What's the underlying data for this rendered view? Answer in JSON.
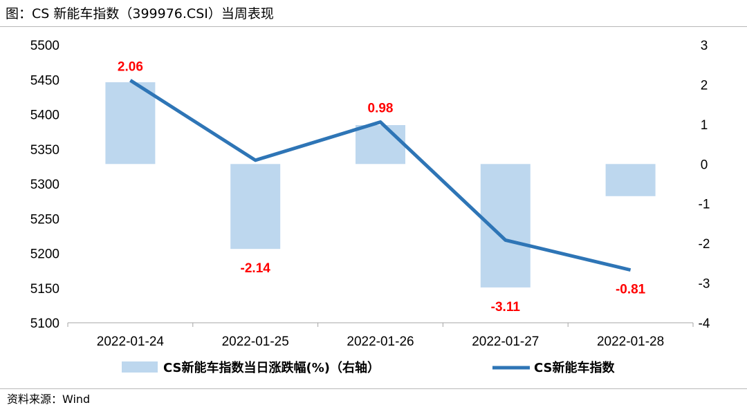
{
  "header": {
    "title": "图：CS 新能车指数（399976.CSI）当周表现"
  },
  "footer": {
    "source": "资料来源：Wind"
  },
  "colors": {
    "bar": "#bdd7ee",
    "line": "#2e75b6",
    "label": "#ff0000",
    "axis": "#a6a6a6"
  },
  "chart_data": {
    "type": "bar+line",
    "categories": [
      "2022-01-24",
      "2022-01-25",
      "2022-01-26",
      "2022-01-27",
      "2022-01-28"
    ],
    "series": [
      {
        "name": "CS新能车指数当日涨跌幅(%)（右轴）",
        "type": "bar",
        "axis": "right",
        "values": [
          2.06,
          -2.14,
          0.98,
          -3.11,
          -0.81
        ],
        "labels": [
          "2.06",
          "-2.14",
          "0.98",
          "-3.11",
          "-0.81"
        ]
      },
      {
        "name": "CS新能车指数",
        "type": "line",
        "axis": "left",
        "values": [
          5449,
          5334,
          5389,
          5219,
          5176
        ]
      }
    ],
    "left_axis": {
      "min": 5100,
      "max": 5500,
      "ticks": [
        "5500",
        "5450",
        "5400",
        "5350",
        "5300",
        "5250",
        "5200",
        "5150",
        "5100"
      ]
    },
    "right_axis": {
      "min": -4,
      "max": 3,
      "ticks": [
        "3",
        "2",
        "1",
        "0",
        "-1",
        "-2",
        "-3",
        "-4"
      ]
    },
    "grid": false,
    "legend_position": "bottom"
  }
}
